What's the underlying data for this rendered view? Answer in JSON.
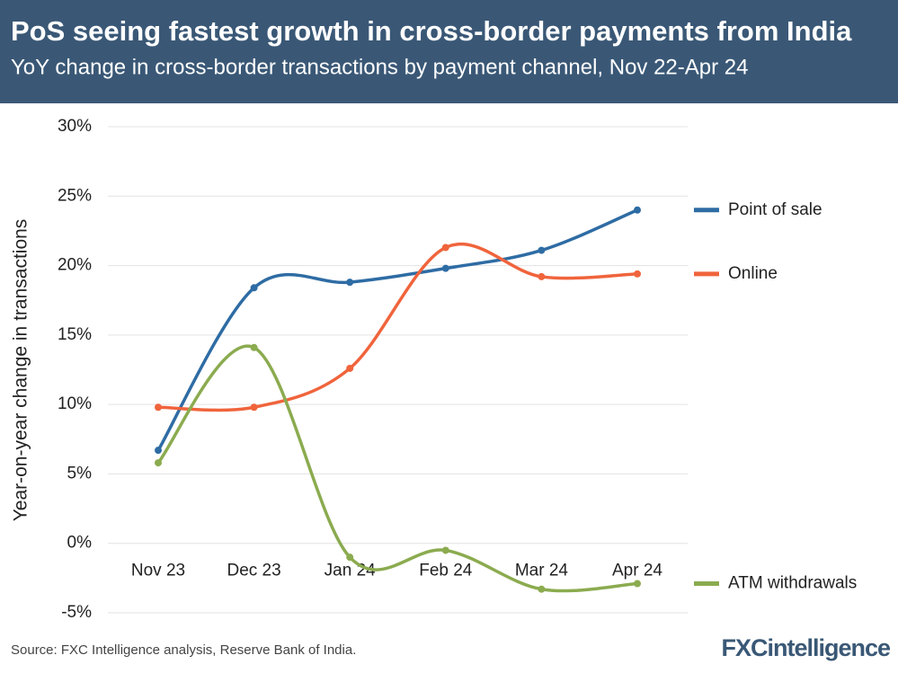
{
  "chart_data": {
    "type": "line",
    "title": "PoS seeing fastest growth in cross-border payments from India",
    "subtitle": "YoY change in cross-border transactions by payment channel, Nov 22-Apr 24",
    "y_label": "Year-on-year change in transactions",
    "source": "Source: FXC Intelligence analysis, Reserve Bank of India.",
    "logo": "FXCintelligence",
    "categories": [
      "Nov 23",
      "Dec 23",
      "Jan 24",
      "Feb 24",
      "Mar 24",
      "Apr 24"
    ],
    "series": [
      {
        "name": "Point of sale",
        "color": "#2e6ca4",
        "values": [
          6.7,
          18.4,
          18.8,
          19.8,
          21.1,
          24.0
        ]
      },
      {
        "name": "Online",
        "color": "#f0643c",
        "values": [
          9.8,
          9.8,
          12.6,
          21.3,
          19.2,
          19.4
        ]
      },
      {
        "name": "ATM withdrawals",
        "color": "#8bab4f",
        "values": [
          5.8,
          14.1,
          -1.0,
          -0.5,
          -3.3,
          -2.9
        ]
      }
    ],
    "ylim": [
      -5,
      30
    ],
    "yticks": [
      {
        "value": -5,
        "label": "-5%"
      },
      {
        "value": 0,
        "label": "0%"
      },
      {
        "value": 5,
        "label": "5%"
      },
      {
        "value": 10,
        "label": "10%"
      },
      {
        "value": 15,
        "label": "15%"
      },
      {
        "value": 20,
        "label": "20%"
      },
      {
        "value": 25,
        "label": "25%"
      },
      {
        "value": 30,
        "label": "30%"
      }
    ],
    "grid": true,
    "legend": "right"
  }
}
